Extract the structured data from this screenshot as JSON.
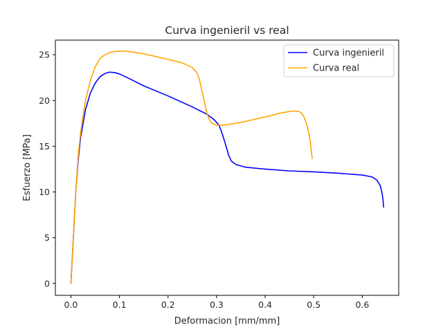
{
  "chart_data": {
    "type": "line",
    "title": "Curva ingenieril vs real",
    "xlabel": "Deformacion [mm/mm]",
    "ylabel": "Esfuerzo [MPa]",
    "xlim": [
      -0.032,
      0.675
    ],
    "ylim": [
      -1.3,
      26.6
    ],
    "xticks": [
      0.0,
      0.1,
      0.2,
      0.3,
      0.4,
      0.5,
      0.6
    ],
    "xtick_labels": [
      "0.0",
      "0.1",
      "0.2",
      "0.3",
      "0.4",
      "0.5",
      "0.6"
    ],
    "yticks": [
      0,
      5,
      10,
      15,
      20,
      25
    ],
    "ytick_labels": [
      "0",
      "5",
      "10",
      "15",
      "20",
      "25"
    ],
    "grid": false,
    "legend_position": "top-right",
    "series": [
      {
        "name": "Curva ingenieril",
        "color": "#0000ff",
        "x": [
          0.0,
          0.005,
          0.01,
          0.015,
          0.02,
          0.03,
          0.04,
          0.05,
          0.06,
          0.07,
          0.08,
          0.09,
          0.1,
          0.12,
          0.15,
          0.2,
          0.25,
          0.28,
          0.295,
          0.305,
          0.31,
          0.315,
          0.32,
          0.325,
          0.33,
          0.34,
          0.36,
          0.4,
          0.45,
          0.5,
          0.55,
          0.6,
          0.62,
          0.63,
          0.637,
          0.641,
          0.643,
          0.644
        ],
        "y": [
          0.0,
          5.0,
          10.0,
          13.5,
          16.0,
          19.0,
          20.8,
          21.9,
          22.6,
          22.95,
          23.1,
          23.05,
          22.9,
          22.4,
          21.6,
          20.5,
          19.3,
          18.5,
          17.9,
          17.3,
          16.6,
          15.8,
          14.9,
          14.0,
          13.4,
          13.0,
          12.7,
          12.5,
          12.3,
          12.2,
          12.05,
          11.85,
          11.65,
          11.3,
          10.7,
          9.8,
          9.0,
          8.3
        ]
      },
      {
        "name": "Curva real",
        "color": "#ffa500",
        "x": [
          0.0,
          0.005,
          0.01,
          0.015,
          0.02,
          0.03,
          0.04,
          0.05,
          0.06,
          0.07,
          0.08,
          0.09,
          0.1,
          0.11,
          0.12,
          0.15,
          0.2,
          0.23,
          0.25,
          0.26,
          0.265,
          0.27,
          0.275,
          0.28,
          0.285,
          0.29,
          0.3,
          0.31,
          0.32,
          0.35,
          0.4,
          0.43,
          0.45,
          0.46,
          0.47,
          0.475,
          0.48,
          0.485,
          0.49,
          0.493,
          0.495,
          0.497
        ],
        "y": [
          0.0,
          5.0,
          10.0,
          14.0,
          16.5,
          20.0,
          22.2,
          23.7,
          24.6,
          25.0,
          25.25,
          25.35,
          25.4,
          25.4,
          25.35,
          25.1,
          24.5,
          24.1,
          23.6,
          23.0,
          22.2,
          21.0,
          19.8,
          18.6,
          17.9,
          17.5,
          17.3,
          17.3,
          17.35,
          17.6,
          18.2,
          18.6,
          18.8,
          18.85,
          18.8,
          18.6,
          18.2,
          17.5,
          16.4,
          15.5,
          14.5,
          13.6
        ]
      }
    ]
  }
}
